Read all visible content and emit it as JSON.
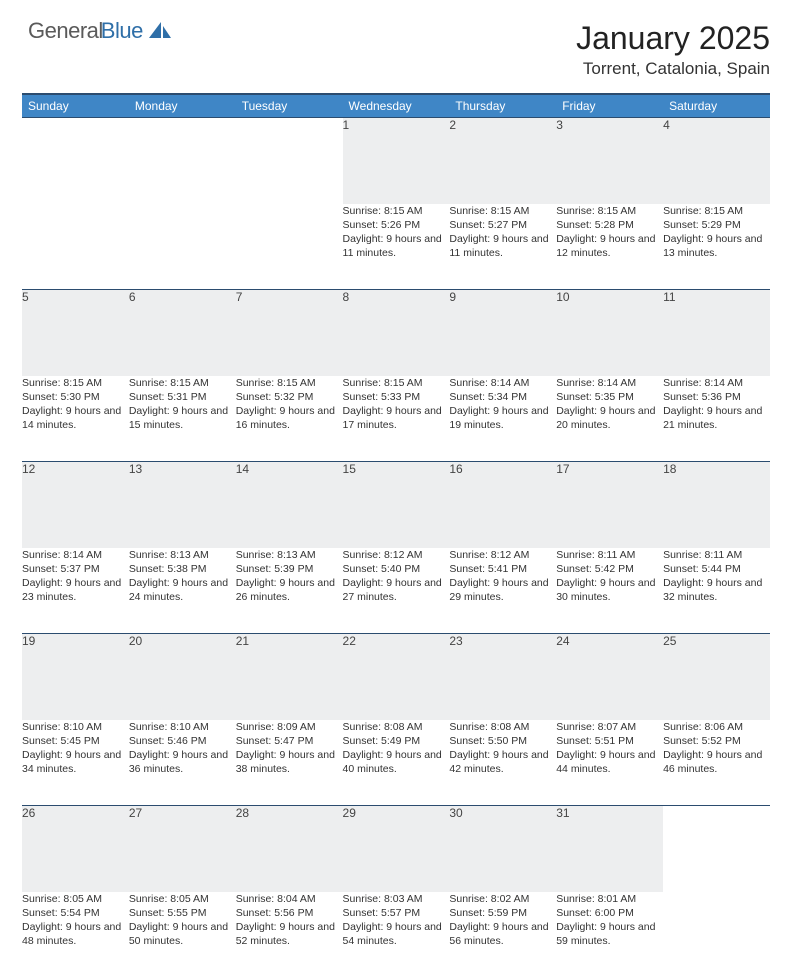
{
  "logo": {
    "text1": "General",
    "text2": "Blue",
    "color1": "#5a5a5a",
    "color2": "#2f6fa8",
    "sail_color": "#2f6fa8"
  },
  "header": {
    "title": "January 2025",
    "location": "Torrent, Catalonia, Spain"
  },
  "style": {
    "header_bg": "#3f86c6",
    "header_text": "#ffffff",
    "row_divider": "#2b4c6f",
    "daynum_bg": "#edeeef",
    "body_text": "#333333",
    "title_fontsize": 32,
    "location_fontsize": 17,
    "dayhead_fontsize": 12,
    "cell_fontsize": 10.5
  },
  "day_headers": [
    "Sunday",
    "Monday",
    "Tuesday",
    "Wednesday",
    "Thursday",
    "Friday",
    "Saturday"
  ],
  "weeks": [
    [
      null,
      null,
      null,
      {
        "n": "1",
        "sr": "8:15 AM",
        "ss": "5:26 PM",
        "dl": "9 hours and 11 minutes."
      },
      {
        "n": "2",
        "sr": "8:15 AM",
        "ss": "5:27 PM",
        "dl": "9 hours and 11 minutes."
      },
      {
        "n": "3",
        "sr": "8:15 AM",
        "ss": "5:28 PM",
        "dl": "9 hours and 12 minutes."
      },
      {
        "n": "4",
        "sr": "8:15 AM",
        "ss": "5:29 PM",
        "dl": "9 hours and 13 minutes."
      }
    ],
    [
      {
        "n": "5",
        "sr": "8:15 AM",
        "ss": "5:30 PM",
        "dl": "9 hours and 14 minutes."
      },
      {
        "n": "6",
        "sr": "8:15 AM",
        "ss": "5:31 PM",
        "dl": "9 hours and 15 minutes."
      },
      {
        "n": "7",
        "sr": "8:15 AM",
        "ss": "5:32 PM",
        "dl": "9 hours and 16 minutes."
      },
      {
        "n": "8",
        "sr": "8:15 AM",
        "ss": "5:33 PM",
        "dl": "9 hours and 17 minutes."
      },
      {
        "n": "9",
        "sr": "8:14 AM",
        "ss": "5:34 PM",
        "dl": "9 hours and 19 minutes."
      },
      {
        "n": "10",
        "sr": "8:14 AM",
        "ss": "5:35 PM",
        "dl": "9 hours and 20 minutes."
      },
      {
        "n": "11",
        "sr": "8:14 AM",
        "ss": "5:36 PM",
        "dl": "9 hours and 21 minutes."
      }
    ],
    [
      {
        "n": "12",
        "sr": "8:14 AM",
        "ss": "5:37 PM",
        "dl": "9 hours and 23 minutes."
      },
      {
        "n": "13",
        "sr": "8:13 AM",
        "ss": "5:38 PM",
        "dl": "9 hours and 24 minutes."
      },
      {
        "n": "14",
        "sr": "8:13 AM",
        "ss": "5:39 PM",
        "dl": "9 hours and 26 minutes."
      },
      {
        "n": "15",
        "sr": "8:12 AM",
        "ss": "5:40 PM",
        "dl": "9 hours and 27 minutes."
      },
      {
        "n": "16",
        "sr": "8:12 AM",
        "ss": "5:41 PM",
        "dl": "9 hours and 29 minutes."
      },
      {
        "n": "17",
        "sr": "8:11 AM",
        "ss": "5:42 PM",
        "dl": "9 hours and 30 minutes."
      },
      {
        "n": "18",
        "sr": "8:11 AM",
        "ss": "5:44 PM",
        "dl": "9 hours and 32 minutes."
      }
    ],
    [
      {
        "n": "19",
        "sr": "8:10 AM",
        "ss": "5:45 PM",
        "dl": "9 hours and 34 minutes."
      },
      {
        "n": "20",
        "sr": "8:10 AM",
        "ss": "5:46 PM",
        "dl": "9 hours and 36 minutes."
      },
      {
        "n": "21",
        "sr": "8:09 AM",
        "ss": "5:47 PM",
        "dl": "9 hours and 38 minutes."
      },
      {
        "n": "22",
        "sr": "8:08 AM",
        "ss": "5:49 PM",
        "dl": "9 hours and 40 minutes."
      },
      {
        "n": "23",
        "sr": "8:08 AM",
        "ss": "5:50 PM",
        "dl": "9 hours and 42 minutes."
      },
      {
        "n": "24",
        "sr": "8:07 AM",
        "ss": "5:51 PM",
        "dl": "9 hours and 44 minutes."
      },
      {
        "n": "25",
        "sr": "8:06 AM",
        "ss": "5:52 PM",
        "dl": "9 hours and 46 minutes."
      }
    ],
    [
      {
        "n": "26",
        "sr": "8:05 AM",
        "ss": "5:54 PM",
        "dl": "9 hours and 48 minutes."
      },
      {
        "n": "27",
        "sr": "8:05 AM",
        "ss": "5:55 PM",
        "dl": "9 hours and 50 minutes."
      },
      {
        "n": "28",
        "sr": "8:04 AM",
        "ss": "5:56 PM",
        "dl": "9 hours and 52 minutes."
      },
      {
        "n": "29",
        "sr": "8:03 AM",
        "ss": "5:57 PM",
        "dl": "9 hours and 54 minutes."
      },
      {
        "n": "30",
        "sr": "8:02 AM",
        "ss": "5:59 PM",
        "dl": "9 hours and 56 minutes."
      },
      {
        "n": "31",
        "sr": "8:01 AM",
        "ss": "6:00 PM",
        "dl": "9 hours and 59 minutes."
      },
      null
    ]
  ],
  "labels": {
    "sunrise": "Sunrise:",
    "sunset": "Sunset:",
    "daylight": "Daylight:"
  }
}
